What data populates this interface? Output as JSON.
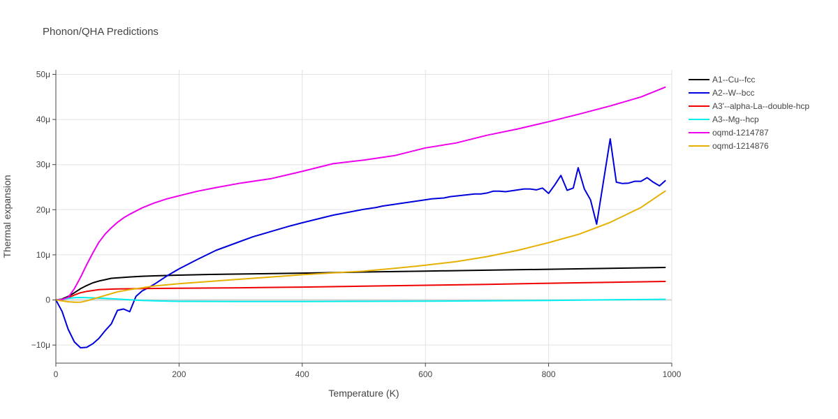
{
  "chart_data": {
    "type": "line",
    "title": "Phonon/QHA Predictions",
    "xlabel": "Temperature (K)",
    "ylabel": "Thermal expansion",
    "xlim": [
      0,
      1000
    ],
    "ylim": [
      -14,
      51
    ],
    "y_unit_suffix": "μ",
    "grid": true,
    "legend_position": "right",
    "x_ticks": [
      0,
      200,
      400,
      600,
      800,
      1000
    ],
    "y_ticks": [
      -10,
      0,
      10,
      20,
      30,
      40,
      50
    ],
    "y_tick_labels": [
      "−10μ",
      "0",
      "10μ",
      "20μ",
      "30μ",
      "40μ",
      "50μ"
    ],
    "series": [
      {
        "name": "A1--Cu--fcc",
        "color": "#000000",
        "x": [
          0,
          10,
          20,
          30,
          40,
          50,
          60,
          70,
          80,
          90,
          100,
          120,
          140,
          160,
          200,
          250,
          300,
          400,
          500,
          600,
          700,
          800,
          900,
          990
        ],
        "y": [
          0,
          0.2,
          0.8,
          1.6,
          2.5,
          3.2,
          3.8,
          4.2,
          4.5,
          4.8,
          4.9,
          5.1,
          5.25,
          5.35,
          5.5,
          5.65,
          5.75,
          5.95,
          6.2,
          6.4,
          6.6,
          6.8,
          7.0,
          7.2
        ]
      },
      {
        "name": "A2--W--bcc",
        "color": "#0000dd",
        "x": [
          0,
          10,
          20,
          30,
          40,
          50,
          60,
          70,
          80,
          90,
          100,
          110,
          120,
          130,
          140,
          150,
          160,
          180,
          200,
          230,
          260,
          300,
          320,
          350,
          380,
          400,
          450,
          500,
          520,
          530,
          560,
          600,
          610,
          630,
          640,
          680,
          690,
          700,
          710,
          720,
          730,
          760,
          770,
          780,
          790,
          800,
          810,
          820,
          830,
          840,
          848,
          858,
          868,
          878,
          900,
          910,
          920,
          930,
          940,
          950,
          960,
          970,
          980,
          990
        ],
        "y": [
          0,
          -2.5,
          -6.5,
          -9.3,
          -10.6,
          -10.5,
          -9.7,
          -8.5,
          -6.8,
          -5.3,
          -2.3,
          -2.0,
          -2.6,
          0.8,
          2.0,
          2.7,
          3.5,
          5.3,
          6.9,
          9.0,
          11.0,
          13.0,
          14.0,
          15.2,
          16.4,
          17.1,
          18.8,
          20.1,
          20.5,
          20.8,
          21.4,
          22.2,
          22.4,
          22.6,
          22.9,
          23.5,
          23.5,
          23.7,
          24.1,
          24.1,
          24.0,
          24.6,
          24.6,
          24.4,
          24.8,
          23.6,
          25.5,
          27.6,
          24.3,
          24.8,
          29.3,
          24.6,
          22.2,
          16.8,
          35.7,
          26.1,
          25.8,
          25.9,
          26.3,
          26.3,
          27.1,
          26.1,
          25.3,
          26.5
        ]
      },
      {
        "name": "A3'--alpha-La--double-hcp",
        "color": "#ee0000",
        "x": [
          0,
          10,
          20,
          30,
          40,
          50,
          60,
          70,
          80,
          90,
          100,
          150,
          200,
          300,
          400,
          500,
          600,
          700,
          800,
          900,
          990
        ],
        "y": [
          0,
          0.1,
          0.5,
          1.1,
          1.6,
          1.9,
          2.1,
          2.3,
          2.35,
          2.4,
          2.45,
          2.55,
          2.6,
          2.7,
          2.85,
          3.05,
          3.25,
          3.45,
          3.7,
          3.9,
          4.1
        ]
      },
      {
        "name": "A3--Mg--hcp",
        "color": "#00eeee",
        "x": [
          0,
          10,
          20,
          30,
          40,
          50,
          60,
          70,
          80,
          100,
          120,
          140,
          160,
          200,
          300,
          400,
          500,
          600,
          700,
          800,
          900,
          990
        ],
        "y": [
          0,
          0.15,
          0.35,
          0.5,
          0.55,
          0.5,
          0.45,
          0.4,
          0.35,
          0.2,
          0.05,
          -0.1,
          -0.2,
          -0.3,
          -0.35,
          -0.35,
          -0.3,
          -0.25,
          -0.2,
          -0.1,
          0.05,
          0.15
        ]
      },
      {
        "name": "oqmd-1214787",
        "color": "#ee00ee",
        "x": [
          0,
          10,
          20,
          30,
          40,
          50,
          60,
          70,
          80,
          90,
          100,
          110,
          120,
          140,
          160,
          180,
          200,
          230,
          260,
          300,
          350,
          400,
          450,
          500,
          550,
          600,
          650,
          700,
          750,
          800,
          850,
          900,
          950,
          990
        ],
        "y": [
          0,
          0.1,
          0.6,
          2.5,
          5.0,
          7.8,
          10.4,
          12.8,
          14.6,
          16.0,
          17.2,
          18.2,
          19.0,
          20.4,
          21.5,
          22.4,
          23.1,
          24.1,
          24.9,
          25.9,
          26.9,
          28.5,
          30.2,
          31.0,
          32.0,
          33.7,
          34.8,
          36.5,
          37.9,
          39.5,
          41.2,
          43.0,
          45.0,
          47.2
        ]
      },
      {
        "name": "oqmd-1214876",
        "color": "#e6b000",
        "x": [
          0,
          10,
          20,
          30,
          40,
          50,
          60,
          70,
          80,
          90,
          100,
          120,
          140,
          160,
          200,
          250,
          300,
          350,
          400,
          450,
          500,
          550,
          600,
          650,
          700,
          750,
          800,
          850,
          900,
          950,
          990
        ],
        "y": [
          0,
          -0.2,
          -0.4,
          -0.5,
          -0.5,
          -0.2,
          0.2,
          0.6,
          1.0,
          1.4,
          1.8,
          2.3,
          2.7,
          3.1,
          3.6,
          4.1,
          4.6,
          5.1,
          5.6,
          6.0,
          6.4,
          7.0,
          7.7,
          8.5,
          9.6,
          11.0,
          12.7,
          14.6,
          17.2,
          20.5,
          24.2
        ]
      }
    ]
  }
}
